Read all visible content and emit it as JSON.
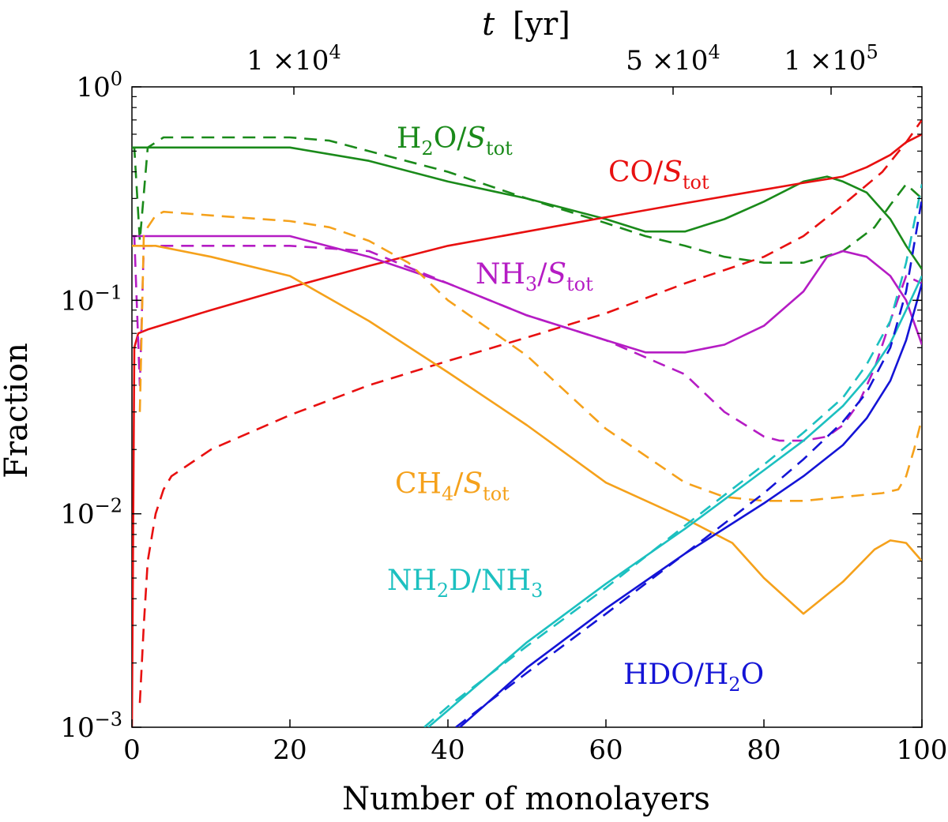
{
  "chart_data": {
    "type": "line",
    "xlabel": "Number of monolayers",
    "ylabel": "Fraction",
    "top_axis": {
      "var": "t",
      "unit": "[yr]",
      "ticks": [
        {
          "x": 20.5,
          "mant": "1",
          "exp": "4"
        },
        {
          "x": 68.5,
          "mant": "5",
          "exp": "4"
        },
        {
          "x": 88.5,
          "mant": "1",
          "exp": "5"
        }
      ]
    },
    "xlim": [
      0,
      100
    ],
    "ylim_log10": [
      -3,
      0
    ],
    "y_scale": "log",
    "xticks": [
      0,
      20,
      40,
      60,
      80,
      100
    ],
    "yticks": [
      {
        "v": 0,
        "base": "10",
        "exp": "0"
      },
      {
        "v": -1,
        "base": "10",
        "exp": "−1"
      },
      {
        "v": -2,
        "base": "10",
        "exp": "−2"
      },
      {
        "v": -3,
        "base": "10",
        "exp": "−3"
      }
    ],
    "series": [
      {
        "name": "H2O/S_tot solid",
        "color": "#1a8a1a",
        "dash": false,
        "x": [
          0,
          0.5,
          1,
          3,
          10,
          20,
          30,
          40,
          50,
          60,
          65,
          70,
          75,
          80,
          85,
          88,
          90,
          93,
          96,
          98,
          100
        ],
        "y": [
          0.52,
          0.52,
          0.52,
          0.52,
          0.52,
          0.52,
          0.45,
          0.36,
          0.3,
          0.24,
          0.21,
          0.21,
          0.24,
          0.29,
          0.36,
          0.38,
          0.36,
          0.32,
          0.24,
          0.18,
          0.14
        ]
      },
      {
        "name": "H2O/S_tot dashed",
        "color": "#1a8a1a",
        "dash": true,
        "x": [
          0,
          0.3,
          1,
          2,
          4,
          10,
          20,
          25,
          30,
          40,
          50,
          60,
          65,
          70,
          75,
          80,
          85,
          90,
          94,
          96,
          98,
          100
        ],
        "y": [
          0.52,
          0.52,
          0.19,
          0.52,
          0.58,
          0.58,
          0.58,
          0.56,
          0.5,
          0.4,
          0.3,
          0.23,
          0.2,
          0.18,
          0.16,
          0.15,
          0.15,
          0.17,
          0.22,
          0.28,
          0.35,
          0.3
        ]
      },
      {
        "name": "CO/S_tot solid",
        "color": "#e81010",
        "dash": false,
        "x": [
          0,
          0.3,
          0.8,
          2,
          10,
          20,
          30,
          40,
          50,
          60,
          70,
          80,
          85,
          90,
          93,
          96,
          98,
          100
        ],
        "y": [
          0.001,
          0.06,
          0.07,
          0.073,
          0.09,
          0.115,
          0.145,
          0.18,
          0.21,
          0.245,
          0.285,
          0.33,
          0.355,
          0.38,
          0.42,
          0.48,
          0.55,
          0.6
        ]
      },
      {
        "name": "CO/S_tot dashed",
        "color": "#e81010",
        "dash": true,
        "x": [
          1,
          1.5,
          2,
          3,
          4,
          5,
          10,
          20,
          30,
          40,
          50,
          60,
          70,
          80,
          85,
          90,
          95,
          98,
          100
        ],
        "y": [
          0.0013,
          0.003,
          0.006,
          0.01,
          0.013,
          0.015,
          0.02,
          0.029,
          0.04,
          0.052,
          0.067,
          0.087,
          0.12,
          0.16,
          0.2,
          0.28,
          0.4,
          0.55,
          0.7
        ]
      },
      {
        "name": "NH3/S_tot solid",
        "color": "#b51cc4",
        "dash": false,
        "x": [
          0,
          0.3,
          1,
          2,
          4,
          10,
          20,
          30,
          40,
          50,
          60,
          65,
          70,
          75,
          80,
          85,
          88,
          90,
          93,
          96,
          98,
          100
        ],
        "y": [
          0.2,
          0.2,
          0.2,
          0.2,
          0.2,
          0.2,
          0.2,
          0.16,
          0.12,
          0.085,
          0.065,
          0.057,
          0.057,
          0.062,
          0.076,
          0.11,
          0.16,
          0.17,
          0.16,
          0.13,
          0.1,
          0.062
        ]
      },
      {
        "name": "NH3/S_tot dashed",
        "color": "#b51cc4",
        "dash": true,
        "x": [
          0,
          0.3,
          1,
          1.5,
          2,
          4,
          10,
          20,
          30,
          40,
          50,
          60,
          70,
          75,
          80,
          82,
          85,
          88,
          90,
          92,
          94,
          96,
          98,
          100
        ],
        "y": [
          0.2,
          0.2,
          0.04,
          0.18,
          0.18,
          0.18,
          0.18,
          0.18,
          0.17,
          0.12,
          0.085,
          0.065,
          0.045,
          0.03,
          0.023,
          0.022,
          0.022,
          0.023,
          0.026,
          0.033,
          0.048,
          0.08,
          0.13,
          0.12
        ]
      },
      {
        "name": "CH4/S_tot solid",
        "color": "#f5a11b",
        "dash": false,
        "x": [
          0,
          0.3,
          1,
          3,
          10,
          20,
          30,
          40,
          50,
          60,
          70,
          76,
          80,
          85,
          90,
          94,
          96,
          98,
          100
        ],
        "y": [
          0.18,
          0.18,
          0.18,
          0.18,
          0.16,
          0.13,
          0.08,
          0.046,
          0.026,
          0.014,
          0.0095,
          0.0073,
          0.005,
          0.0034,
          0.0048,
          0.0068,
          0.0075,
          0.0073,
          0.006
        ]
      },
      {
        "name": "CH4/S_tot dashed",
        "color": "#f5a11b",
        "dash": true,
        "x": [
          1,
          1.5,
          2,
          3,
          4,
          10,
          20,
          25,
          30,
          35,
          40,
          50,
          60,
          70,
          75,
          80,
          85,
          90,
          95,
          97,
          98,
          99,
          100
        ],
        "y": [
          0.03,
          0.2,
          0.22,
          0.25,
          0.26,
          0.25,
          0.235,
          0.22,
          0.19,
          0.15,
          0.1,
          0.055,
          0.025,
          0.014,
          0.012,
          0.0115,
          0.0115,
          0.012,
          0.0125,
          0.013,
          0.015,
          0.02,
          0.028
        ]
      },
      {
        "name": "NH2D/NH3 solid",
        "color": "#1cc0c0",
        "dash": false,
        "x": [
          37.5,
          40,
          50,
          60,
          70,
          80,
          85,
          90,
          93,
          96,
          98,
          100
        ],
        "y": [
          0.001,
          0.0012,
          0.0025,
          0.0047,
          0.0085,
          0.016,
          0.022,
          0.032,
          0.043,
          0.063,
          0.09,
          0.13
        ]
      },
      {
        "name": "NH2D/NH3 dashed",
        "color": "#1cc0c0",
        "dash": true,
        "x": [
          37,
          40,
          50,
          60,
          70,
          80,
          85,
          90,
          93,
          96,
          98,
          100
        ],
        "y": [
          0.001,
          0.00125,
          0.0024,
          0.0045,
          0.0088,
          0.017,
          0.024,
          0.035,
          0.05,
          0.08,
          0.15,
          0.35
        ]
      },
      {
        "name": "HDO/H2O solid",
        "color": "#1414d6",
        "dash": false,
        "x": [
          41.5,
          45,
          50,
          60,
          70,
          80,
          85,
          90,
          93,
          96,
          98,
          100
        ],
        "y": [
          0.001,
          0.0013,
          0.0019,
          0.0036,
          0.0065,
          0.0112,
          0.015,
          0.021,
          0.028,
          0.042,
          0.065,
          0.12
        ]
      },
      {
        "name": "HDO/H2O dashed",
        "color": "#1414d6",
        "dash": true,
        "x": [
          41,
          45,
          50,
          60,
          70,
          80,
          85,
          90,
          93,
          96,
          98,
          100
        ],
        "y": [
          0.001,
          0.0013,
          0.0018,
          0.0034,
          0.0065,
          0.0125,
          0.018,
          0.027,
          0.037,
          0.06,
          0.11,
          0.3
        ]
      }
    ],
    "labels": [
      {
        "key": "h2o",
        "base": "H",
        "sub1": "2",
        "mid": "O/",
        "ital": "S",
        "sub2": "tot",
        "color": "#1a8a1a",
        "x": 33.5,
        "y": 0.52
      },
      {
        "key": "co",
        "base": "",
        "sub1": "",
        "mid": "CO/",
        "ital": "S",
        "sub2": "tot",
        "color": "#e81010",
        "x": 60.3,
        "y": 0.36
      },
      {
        "key": "nh3",
        "base": "NH",
        "sub1": "3",
        "mid": "/",
        "ital": "S",
        "sub2": "tot",
        "color": "#b51cc4",
        "x": 43.5,
        "y": 0.12
      },
      {
        "key": "ch4",
        "base": "CH",
        "sub1": "4",
        "mid": "/",
        "ital": "S",
        "sub2": "tot",
        "color": "#f5a11b",
        "x": 33.3,
        "y": 0.0125
      },
      {
        "key": "nh2d",
        "base": "NH",
        "sub1": "2",
        "mid": "D/NH",
        "ital": "",
        "sub2": "3",
        "color": "#1cc0c0",
        "x": 32.3,
        "y": 0.0044
      },
      {
        "key": "hdo",
        "base": "",
        "sub1": "",
        "mid": "HDO/H",
        "ital": "",
        "sub2": "2",
        "tail": "O",
        "color": "#1414d6",
        "x": 62.2,
        "y": 0.0016
      }
    ]
  }
}
